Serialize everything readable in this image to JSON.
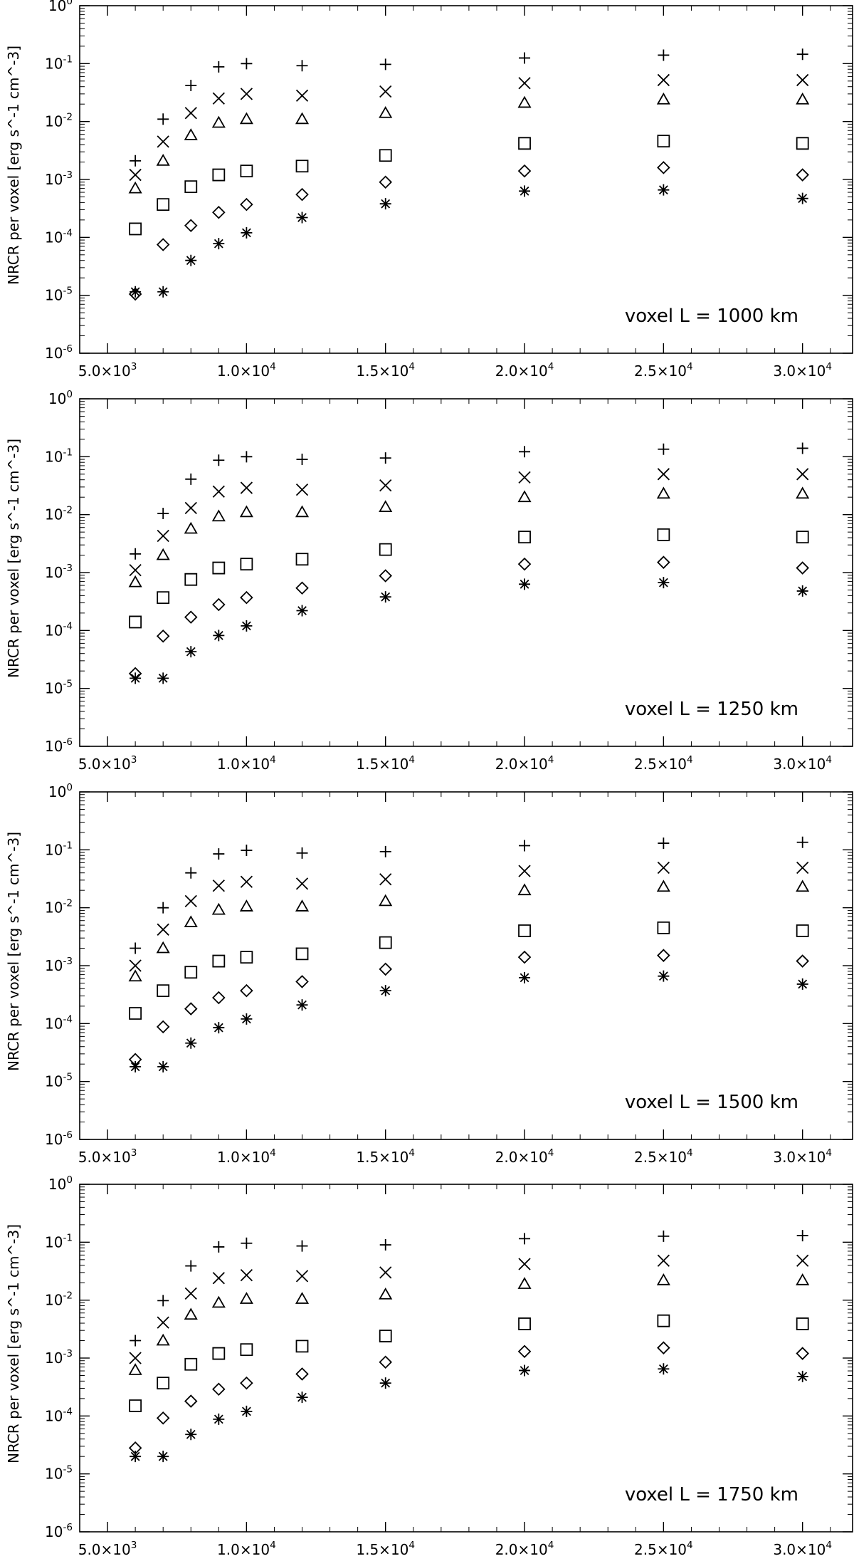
{
  "chart_data": [
    {
      "type": "scatter",
      "annotation": "voxel L = 1000 km",
      "ylabel": "NRCR per voxel [erg s^-1 cm^-3]",
      "xlabel": "",
      "yscale": "log",
      "xlim": [
        4000,
        31800
      ],
      "ylim": [
        1e-06,
        1
      ],
      "x_ticks": [
        5000,
        10000,
        15000,
        20000,
        25000,
        30000
      ],
      "x_tick_labels": [
        {
          "m": "5.0×10",
          "e": "3"
        },
        {
          "m": "1.0×10",
          "e": "4"
        },
        {
          "m": "1.5×10",
          "e": "4"
        },
        {
          "m": "2.0×10",
          "e": "4"
        },
        {
          "m": "2.5×10",
          "e": "4"
        },
        {
          "m": "3.0×10",
          "e": "4"
        }
      ],
      "y_tick_labels": [
        {
          "m": "10",
          "e": "-6"
        },
        {
          "m": "10",
          "e": "-5"
        },
        {
          "m": "10",
          "e": "-4"
        },
        {
          "m": "10",
          "e": "-3"
        },
        {
          "m": "10",
          "e": "-2"
        },
        {
          "m": "10",
          "e": "-1"
        },
        {
          "m": "10",
          "e": "0"
        }
      ],
      "x": [
        6000,
        7000,
        8000,
        9000,
        10000,
        12000,
        15000,
        20000,
        25000,
        30000
      ],
      "series": [
        {
          "marker": "plus",
          "values": [
            0.0021,
            0.011,
            0.042,
            0.088,
            0.1,
            0.092,
            0.097,
            0.125,
            0.14,
            0.145
          ]
        },
        {
          "marker": "cross",
          "values": [
            0.0012,
            0.0045,
            0.014,
            0.025,
            0.03,
            0.028,
            0.033,
            0.046,
            0.052,
            0.052
          ]
        },
        {
          "marker": "triangle",
          "values": [
            0.0007,
            0.0021,
            0.0058,
            0.0095,
            0.011,
            0.011,
            0.014,
            0.021,
            0.024,
            0.024
          ]
        },
        {
          "marker": "square",
          "values": [
            0.00014,
            0.00037,
            0.00075,
            0.0012,
            0.0014,
            0.0017,
            0.0026,
            0.0042,
            0.0046,
            0.0042
          ]
        },
        {
          "marker": "diamond",
          "values": [
            1.05e-05,
            7.5e-05,
            0.00016,
            0.00027,
            0.00037,
            0.00055,
            0.0009,
            0.0014,
            0.0016,
            0.0012
          ]
        },
        {
          "marker": "asterisk",
          "values": [
            1.15e-05,
            1.15e-05,
            4e-05,
            7.8e-05,
            0.00012,
            0.00022,
            0.00038,
            0.00063,
            0.00066,
            0.00047
          ]
        }
      ]
    },
    {
      "type": "scatter",
      "annotation": "voxel L = 1250 km",
      "ylabel": "NRCR per voxel [erg s^-1 cm^-3]",
      "xlabel": "",
      "yscale": "log",
      "xlim": [
        4000,
        31800
      ],
      "ylim": [
        1e-06,
        1
      ],
      "x_ticks": [
        5000,
        10000,
        15000,
        20000,
        25000,
        30000
      ],
      "x_tick_labels": [
        {
          "m": "5.0×10",
          "e": "3"
        },
        {
          "m": "1.0×10",
          "e": "4"
        },
        {
          "m": "1.5×10",
          "e": "4"
        },
        {
          "m": "2.0×10",
          "e": "4"
        },
        {
          "m": "2.5×10",
          "e": "4"
        },
        {
          "m": "3.0×10",
          "e": "4"
        }
      ],
      "y_tick_labels": [
        {
          "m": "10",
          "e": "-6"
        },
        {
          "m": "10",
          "e": "-5"
        },
        {
          "m": "10",
          "e": "-4"
        },
        {
          "m": "10",
          "e": "-3"
        },
        {
          "m": "10",
          "e": "-2"
        },
        {
          "m": "10",
          "e": "-1"
        },
        {
          "m": "10",
          "e": "0"
        }
      ],
      "x": [
        6000,
        7000,
        8000,
        9000,
        10000,
        12000,
        15000,
        20000,
        25000,
        30000
      ],
      "series": [
        {
          "marker": "plus",
          "values": [
            0.0021,
            0.0105,
            0.041,
            0.087,
            0.1,
            0.09,
            0.095,
            0.122,
            0.135,
            0.14
          ]
        },
        {
          "marker": "cross",
          "values": [
            0.0011,
            0.0043,
            0.013,
            0.025,
            0.029,
            0.027,
            0.032,
            0.044,
            0.05,
            0.05
          ]
        },
        {
          "marker": "triangle",
          "values": [
            0.00068,
            0.002,
            0.0057,
            0.0093,
            0.011,
            0.011,
            0.0135,
            0.02,
            0.023,
            0.023
          ]
        },
        {
          "marker": "square",
          "values": [
            0.00014,
            0.00037,
            0.00076,
            0.0012,
            0.0014,
            0.0017,
            0.0025,
            0.0041,
            0.0045,
            0.0041
          ]
        },
        {
          "marker": "diamond",
          "values": [
            1.8e-05,
            8e-05,
            0.00017,
            0.00028,
            0.00037,
            0.00054,
            0.00088,
            0.0014,
            0.0015,
            0.0012
          ]
        },
        {
          "marker": "asterisk",
          "values": [
            1.5e-05,
            1.5e-05,
            4.3e-05,
            8.2e-05,
            0.00012,
            0.00022,
            0.00038,
            0.00063,
            0.00067,
            0.00048
          ]
        }
      ]
    },
    {
      "type": "scatter",
      "annotation": "voxel L = 1500 km",
      "ylabel": "NRCR per voxel [erg s^-1 cm^-3]",
      "xlabel": "",
      "yscale": "log",
      "xlim": [
        4000,
        31800
      ],
      "ylim": [
        1e-06,
        1
      ],
      "x_ticks": [
        5000,
        10000,
        15000,
        20000,
        25000,
        30000
      ],
      "x_tick_labels": [
        {
          "m": "5.0×10",
          "e": "3"
        },
        {
          "m": "1.0×10",
          "e": "4"
        },
        {
          "m": "1.5×10",
          "e": "4"
        },
        {
          "m": "2.0×10",
          "e": "4"
        },
        {
          "m": "2.5×10",
          "e": "4"
        },
        {
          "m": "3.0×10",
          "e": "4"
        }
      ],
      "y_tick_labels": [
        {
          "m": "10",
          "e": "-6"
        },
        {
          "m": "10",
          "e": "-5"
        },
        {
          "m": "10",
          "e": "-4"
        },
        {
          "m": "10",
          "e": "-3"
        },
        {
          "m": "10",
          "e": "-2"
        },
        {
          "m": "10",
          "e": "-1"
        },
        {
          "m": "10",
          "e": "0"
        }
      ],
      "x": [
        6000,
        7000,
        8000,
        9000,
        10000,
        12000,
        15000,
        20000,
        25000,
        30000
      ],
      "series": [
        {
          "marker": "plus",
          "values": [
            0.002,
            0.01,
            0.04,
            0.085,
            0.098,
            0.088,
            0.093,
            0.118,
            0.13,
            0.135
          ]
        },
        {
          "marker": "cross",
          "values": [
            0.001,
            0.0042,
            0.013,
            0.024,
            0.028,
            0.026,
            0.031,
            0.043,
            0.049,
            0.049
          ]
        },
        {
          "marker": "triangle",
          "values": [
            0.00065,
            0.002,
            0.0056,
            0.0092,
            0.0105,
            0.0105,
            0.013,
            0.02,
            0.023,
            0.023
          ]
        },
        {
          "marker": "square",
          "values": [
            0.00015,
            0.00037,
            0.00077,
            0.0012,
            0.0014,
            0.0016,
            0.0025,
            0.004,
            0.0045,
            0.004
          ]
        },
        {
          "marker": "diamond",
          "values": [
            2.4e-05,
            8.8e-05,
            0.00018,
            0.00028,
            0.00037,
            0.00053,
            0.00087,
            0.0014,
            0.0015,
            0.0012
          ]
        },
        {
          "marker": "asterisk",
          "values": [
            1.8e-05,
            1.8e-05,
            4.6e-05,
            8.5e-05,
            0.00012,
            0.00021,
            0.00037,
            0.00062,
            0.00066,
            0.00048
          ]
        }
      ]
    },
    {
      "type": "scatter",
      "annotation": "voxel L = 1750 km",
      "ylabel": "NRCR per voxel [erg s^-1 cm^-3]",
      "xlabel": "",
      "yscale": "log",
      "xlim": [
        4000,
        31800
      ],
      "ylim": [
        1e-06,
        1
      ],
      "x_ticks": [
        5000,
        10000,
        15000,
        20000,
        25000,
        30000
      ],
      "x_tick_labels": [
        {
          "m": "5.0×10",
          "e": "3"
        },
        {
          "m": "1.0×10",
          "e": "4"
        },
        {
          "m": "1.5×10",
          "e": "4"
        },
        {
          "m": "2.0×10",
          "e": "4"
        },
        {
          "m": "2.5×10",
          "e": "4"
        },
        {
          "m": "3.0×10",
          "e": "4"
        }
      ],
      "y_tick_labels": [
        {
          "m": "10",
          "e": "-6"
        },
        {
          "m": "10",
          "e": "-5"
        },
        {
          "m": "10",
          "e": "-4"
        },
        {
          "m": "10",
          "e": "-3"
        },
        {
          "m": "10",
          "e": "-2"
        },
        {
          "m": "10",
          "e": "-1"
        },
        {
          "m": "10",
          "e": "0"
        }
      ],
      "x": [
        6000,
        7000,
        8000,
        9000,
        10000,
        12000,
        15000,
        20000,
        25000,
        30000
      ],
      "series": [
        {
          "marker": "plus",
          "values": [
            0.002,
            0.0098,
            0.039,
            0.083,
            0.096,
            0.086,
            0.09,
            0.115,
            0.127,
            0.13
          ]
        },
        {
          "marker": "cross",
          "values": [
            0.001,
            0.0041,
            0.013,
            0.024,
            0.027,
            0.026,
            0.03,
            0.042,
            0.048,
            0.048
          ]
        },
        {
          "marker": "triangle",
          "values": [
            0.00062,
            0.002,
            0.0056,
            0.009,
            0.0105,
            0.0105,
            0.0125,
            0.019,
            0.022,
            0.022
          ]
        },
        {
          "marker": "square",
          "values": [
            0.00015,
            0.00037,
            0.00078,
            0.0012,
            0.0014,
            0.0016,
            0.0024,
            0.0039,
            0.0044,
            0.0039
          ]
        },
        {
          "marker": "diamond",
          "values": [
            2.8e-05,
            9.2e-05,
            0.00018,
            0.00029,
            0.00037,
            0.00053,
            0.00085,
            0.0013,
            0.0015,
            0.0012
          ]
        },
        {
          "marker": "asterisk",
          "values": [
            2e-05,
            2e-05,
            4.8e-05,
            8.8e-05,
            0.00012,
            0.00021,
            0.00037,
            0.00061,
            0.00065,
            0.00048
          ]
        }
      ]
    }
  ]
}
